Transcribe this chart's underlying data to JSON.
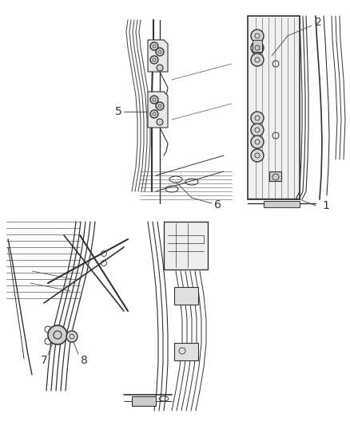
{
  "bg_color": "#ffffff",
  "line_color": "#555555",
  "dark_color": "#333333",
  "light_gray": "#cccccc",
  "mid_gray": "#aaaaaa",
  "fig_width": 4.38,
  "fig_height": 5.33,
  "dpi": 100
}
